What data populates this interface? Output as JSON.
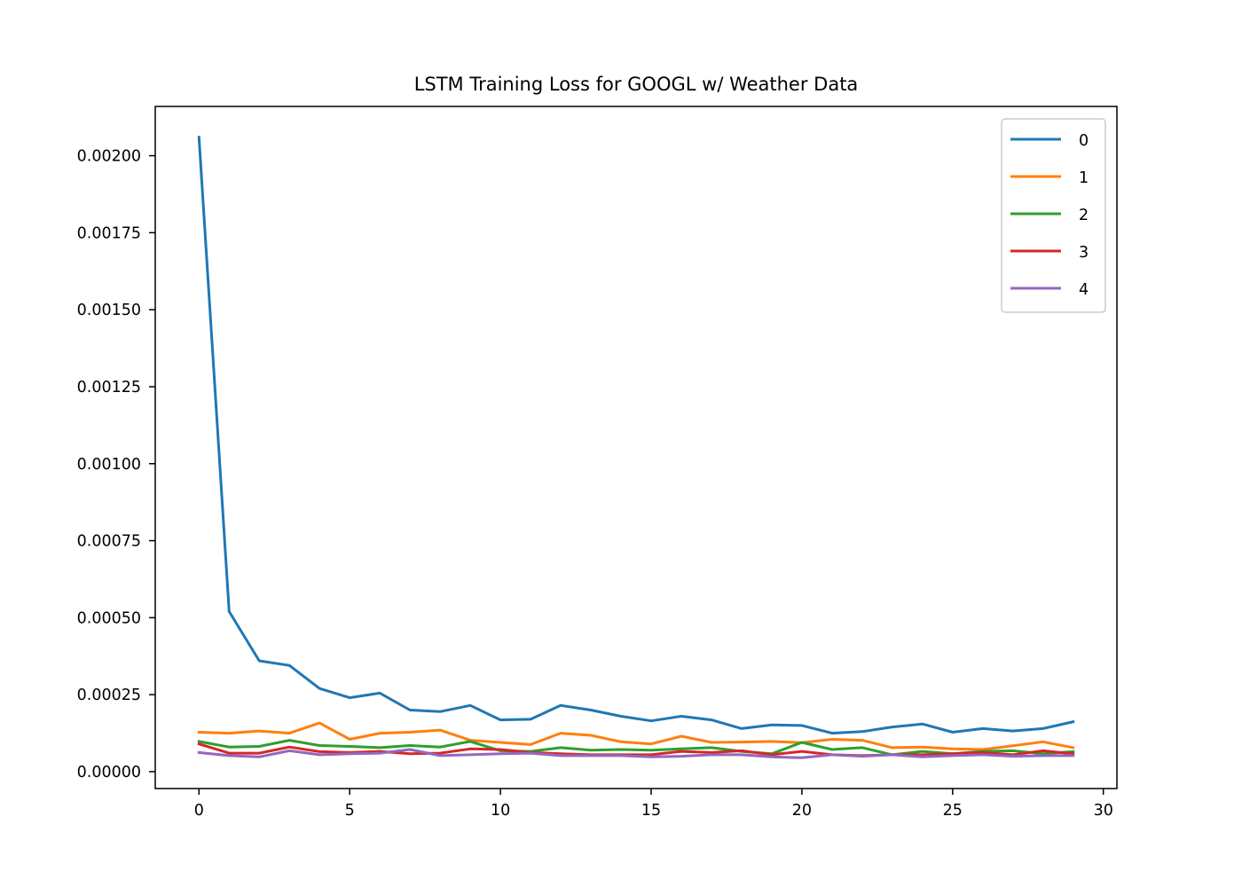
{
  "chart_data": {
    "type": "line",
    "title": "LSTM Training Loss for GOOGL w/ Weather Data",
    "xlabel": "",
    "ylabel": "",
    "xlim": [
      -1.45,
      30.45
    ],
    "ylim": [
      -5.48e-05,
      0.00216
    ],
    "x_ticks": [
      0,
      5,
      10,
      15,
      20,
      25,
      30
    ],
    "x_tick_labels": [
      "0",
      "5",
      "10",
      "15",
      "20",
      "25",
      "30"
    ],
    "y_ticks": [
      0,
      0.00025,
      0.0005,
      0.00075,
      0.001,
      0.00125,
      0.0015,
      0.00175,
      0.002
    ],
    "y_tick_labels": [
      "0.00000",
      "0.00025",
      "0.00050",
      "0.00075",
      "0.00100",
      "0.00125",
      "0.00150",
      "0.00175",
      "0.00200"
    ],
    "grid": false,
    "legend_position": "top-right",
    "x": [
      0,
      1,
      2,
      3,
      4,
      5,
      6,
      7,
      8,
      9,
      10,
      11,
      12,
      13,
      14,
      15,
      16,
      17,
      18,
      19,
      20,
      21,
      22,
      23,
      24,
      25,
      26,
      27,
      28,
      29
    ],
    "series": [
      {
        "name": "0",
        "color": "#1f77b4",
        "values": [
          0.00206,
          0.00052,
          0.00036,
          0.000345,
          0.00027,
          0.00024,
          0.000255,
          0.0002,
          0.000195,
          0.000215,
          0.000168,
          0.00017,
          0.000215,
          0.0002,
          0.00018,
          0.000165,
          0.00018,
          0.000168,
          0.00014,
          0.000152,
          0.00015,
          0.000125,
          0.00013,
          0.000145,
          0.000155,
          0.000128,
          0.00014,
          0.000132,
          0.00014,
          0.000162
        ]
      },
      {
        "name": "1",
        "color": "#ff7f0e",
        "values": [
          0.000128,
          0.000125,
          0.000132,
          0.000125,
          0.000158,
          0.000105,
          0.000125,
          0.000128,
          0.000135,
          0.000102,
          9.5e-05,
          8.8e-05,
          0.000125,
          0.000118,
          9.7e-05,
          9e-05,
          0.000115,
          9.5e-05,
          9.6e-05,
          9.8e-05,
          9.4e-05,
          0.000105,
          0.000102,
          7.8e-05,
          8e-05,
          7.4e-05,
          7.2e-05,
          8.4e-05,
          9.7e-05,
          7.8e-05
        ]
      },
      {
        "name": "2",
        "color": "#2ca02c",
        "values": [
          9.8e-05,
          8e-05,
          8.2e-05,
          0.000102,
          8.5e-05,
          8.2e-05,
          7.8e-05,
          8.5e-05,
          8e-05,
          9.8e-05,
          6.8e-05,
          6.6e-05,
          7.8e-05,
          7e-05,
          7.2e-05,
          7e-05,
          7.4e-05,
          7.8e-05,
          6.6e-05,
          5.8e-05,
          9.5e-05,
          7.2e-05,
          7.8e-05,
          5.5e-05,
          6.6e-05,
          5.8e-05,
          6.6e-05,
          6.8e-05,
          5.8e-05,
          6.5e-05
        ]
      },
      {
        "name": "3",
        "color": "#d62728",
        "values": [
          9e-05,
          6e-05,
          6e-05,
          8e-05,
          6.5e-05,
          6.2e-05,
          6.6e-05,
          5.8e-05,
          6e-05,
          7.4e-05,
          7.2e-05,
          6.2e-05,
          5.8e-05,
          5.5e-05,
          5.5e-05,
          5.5e-05,
          6.6e-05,
          6.2e-05,
          6.8e-05,
          5.5e-05,
          6.6e-05,
          5.5e-05,
          5.2e-05,
          5.5e-05,
          5.5e-05,
          5.8e-05,
          6.2e-05,
          5.5e-05,
          6.8e-05,
          5.8e-05
        ]
      },
      {
        "name": "4",
        "color": "#9467bd",
        "values": [
          6.2e-05,
          5.2e-05,
          4.8e-05,
          6.8e-05,
          5.5e-05,
          5.8e-05,
          6e-05,
          7.2e-05,
          5.2e-05,
          5.5e-05,
          5.8e-05,
          6e-05,
          5.2e-05,
          5.2e-05,
          5.2e-05,
          4.8e-05,
          5e-05,
          5.5e-05,
          5.5e-05,
          4.8e-05,
          4.5e-05,
          5.5e-05,
          5e-05,
          5.5e-05,
          4.8e-05,
          5.2e-05,
          5.5e-05,
          5e-05,
          5.2e-05,
          5.2e-05
        ]
      }
    ]
  }
}
